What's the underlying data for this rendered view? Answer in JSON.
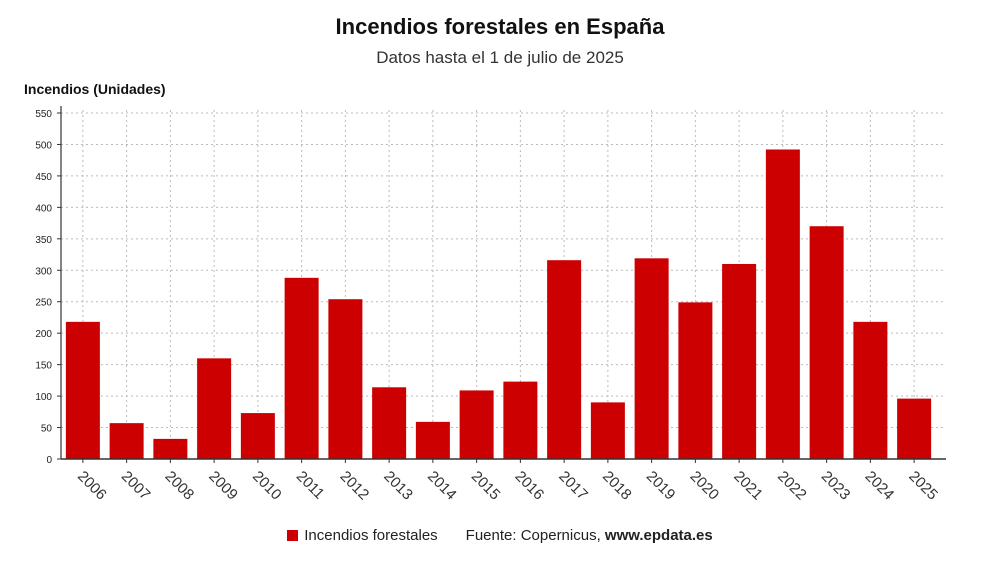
{
  "title": "Incendios forestales en España",
  "subtitle": "Datos hasta el 1 de julio de 2025",
  "colors": {
    "bar": "#cc0000",
    "grid": "#bbbbbb",
    "axis": "#333333"
  },
  "legend": {
    "label": "Incendios forestales"
  },
  "source": {
    "prefix": "Fuente: Copernicus, ",
    "url": "www.epdata.es"
  },
  "chart_data": {
    "type": "bar",
    "title": "Incendios forestales en España",
    "subtitle": "Datos hasta el 1 de julio de 2025",
    "ylabel": "Incendios (Unidades)",
    "xlabel": "",
    "ylim": [
      0,
      550
    ],
    "yticks": [
      0,
      50,
      100,
      150,
      200,
      250,
      300,
      350,
      400,
      450,
      500,
      550
    ],
    "grid": true,
    "legend_position": "bottom",
    "categories": [
      "2006",
      "2007",
      "2008",
      "2009",
      "2010",
      "2011",
      "2012",
      "2013",
      "2014",
      "2015",
      "2016",
      "2017",
      "2018",
      "2019",
      "2020",
      "2021",
      "2022",
      "2023",
      "2024",
      "2025"
    ],
    "series": [
      {
        "name": "Incendios forestales",
        "values": [
          218,
          57,
          32,
          160,
          73,
          288,
          254,
          114,
          59,
          109,
          123,
          316,
          90,
          319,
          249,
          310,
          492,
          370,
          218,
          96
        ]
      }
    ]
  }
}
